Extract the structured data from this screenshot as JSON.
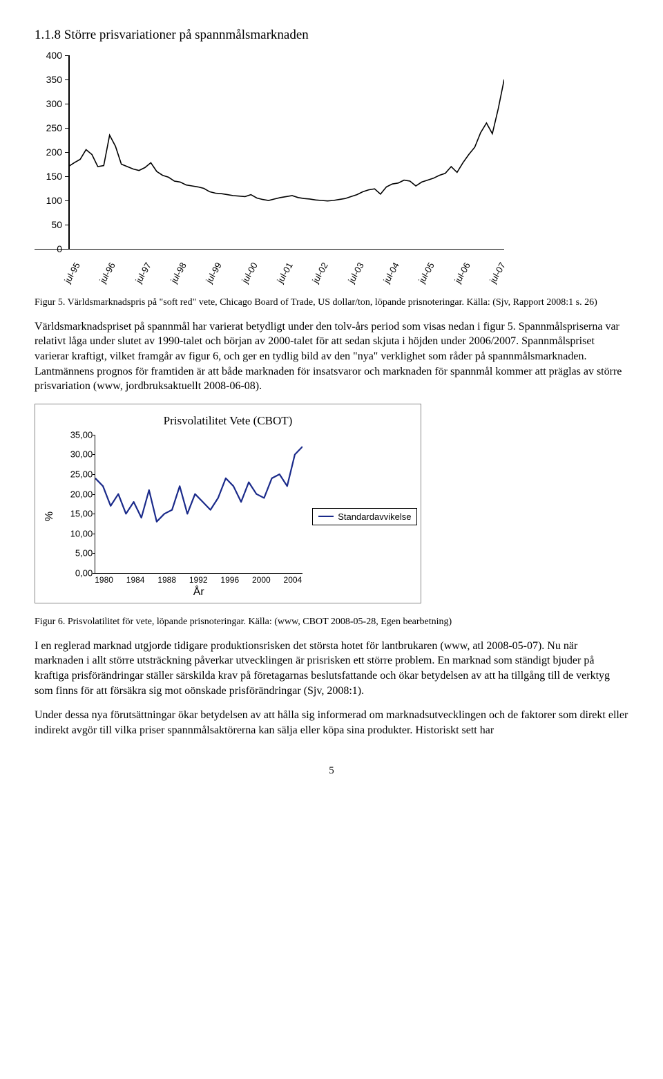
{
  "section_title": "1.1.8 Större prisvariationer på spannmålsmarknaden",
  "chart1": {
    "type": "line",
    "ylim": [
      0,
      400
    ],
    "ytick_step": 50,
    "yticks": [
      0,
      50,
      100,
      150,
      200,
      250,
      300,
      350,
      400
    ],
    "xticks": [
      "jul-95",
      "jul-96",
      "jul-97",
      "jul-98",
      "jul-99",
      "jul-00",
      "jul-01",
      "jul-02",
      "jul-03",
      "jul-04",
      "jul-05",
      "jul-06",
      "jul-07"
    ],
    "line_color": "#000000",
    "line_width": 1.6,
    "background_color": "#ffffff",
    "values": [
      170,
      178,
      185,
      205,
      195,
      170,
      172,
      235,
      212,
      175,
      170,
      165,
      162,
      168,
      178,
      160,
      152,
      148,
      140,
      138,
      132,
      130,
      128,
      125,
      118,
      115,
      114,
      112,
      110,
      109,
      108,
      112,
      105,
      102,
      100,
      103,
      106,
      108,
      110,
      106,
      104,
      103,
      101,
      100,
      99,
      100,
      102,
      104,
      108,
      112,
      118,
      122,
      124,
      113,
      128,
      134,
      136,
      142,
      140,
      130,
      138,
      142,
      146,
      152,
      156,
      170,
      158,
      178,
      195,
      210,
      240,
      260,
      238,
      290,
      350
    ]
  },
  "caption1": "Figur 5. Världsmarknadspris på \"soft red\" vete, Chicago Board of Trade, US dollar/ton, löpande prisnoteringar. Källa: (Sjv, Rapport 2008:1 s. 26)",
  "para1": "Världsmarknadspriset på spannmål har varierat betydligt under den tolv-års period som visas nedan i figur 5. Spannmålspriserna var relativt låga under slutet av 1990-talet och början av 2000-talet för att sedan skjuta i höjden under 2006/2007. Spannmålspriset varierar kraftigt, vilket framgår av figur 6, och ger en tydlig bild av den \"nya\" verklighet som råder på spannmålsmarknaden. Lantmännens prognos för framtiden är att både marknaden för insatsvaror och marknaden för spannmål kommer att präglas av större prisvariation (www, jordbruksaktuellt 2008-06-08).",
  "chart2": {
    "type": "line",
    "title": "Prisvolatilitet Vete (CBOT)",
    "ylabel": "%",
    "xlabel": "År",
    "ylim": [
      0,
      35
    ],
    "ytick_step": 5,
    "yticks_labels": [
      "0,00",
      "5,00",
      "10,00",
      "15,00",
      "20,00",
      "25,00",
      "30,00",
      "35,00"
    ],
    "xticks": [
      "1980",
      "1984",
      "1988",
      "1992",
      "1996",
      "2000",
      "2004"
    ],
    "line_color": "#1a2a8a",
    "line_width": 2.2,
    "background_color": "#ffffff",
    "legend_label": "Standardavvikelse",
    "values": [
      24,
      22,
      17,
      20,
      15,
      18,
      14,
      21,
      13,
      15,
      16,
      22,
      15,
      20,
      18,
      16,
      19,
      24,
      22,
      18,
      23,
      20,
      19,
      24,
      25,
      22,
      30,
      32
    ]
  },
  "caption2": "Figur 6. Prisvolatilitet för vete, löpande prisnoteringar. Källa: (www, CBOT 2008-05-28, Egen bearbetning)",
  "para2": "I en reglerad marknad utgjorde tidigare produktionsrisken det största hotet för lantbrukaren (www, atl 2008-05-07). Nu när marknaden i allt större utsträckning påverkar utvecklingen är prisrisken ett större problem. En marknad som ständigt bjuder på kraftiga prisförändringar ställer särskilda krav på företagarnas beslutsfattande och ökar betydelsen av att ha tillgång till de verktyg som finns för att försäkra sig mot oönskade prisförändringar (Sjv, 2008:1).",
  "para3": "Under dessa nya förutsättningar ökar betydelsen av att hålla sig informerad om marknadsutvecklingen och de faktorer som direkt eller indirekt avgör till vilka priser spannmålsaktörerna kan sälja eller köpa sina produkter. Historiskt sett har",
  "page_number": "5"
}
